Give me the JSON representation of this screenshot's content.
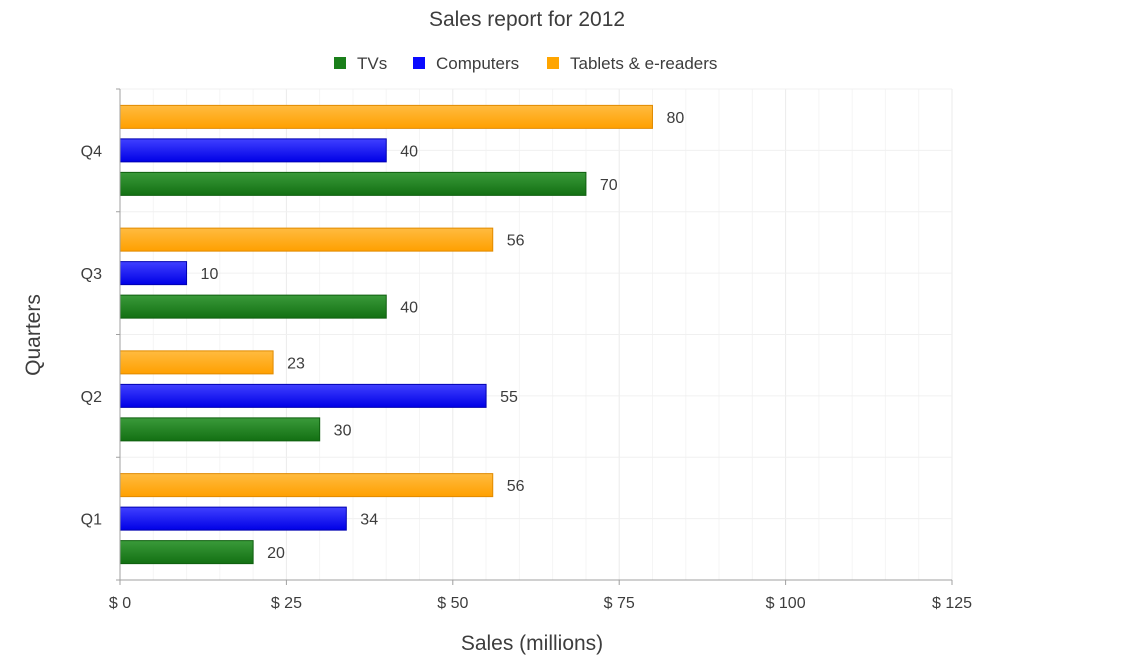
{
  "chart_data": {
    "type": "bar",
    "orientation": "horizontal",
    "title": "Sales report for 2012",
    "xlabel": "Sales (millions)",
    "ylabel": "Quarters",
    "categories": [
      "Q1",
      "Q2",
      "Q3",
      "Q4"
    ],
    "xlim": [
      0,
      125
    ],
    "x_ticks": [
      0,
      25,
      50,
      75,
      100,
      125
    ],
    "x_tick_labels": [
      "$ 0",
      "$ 25",
      "$ 50",
      "$ 75",
      "$ 100",
      "$ 125"
    ],
    "grid": true,
    "legend_position": "top-center",
    "series": [
      {
        "name": "TVs",
        "color": "#1a7f1a",
        "values": [
          20,
          30,
          40,
          70
        ]
      },
      {
        "name": "Computers",
        "color": "#0a0aff",
        "values": [
          34,
          55,
          10,
          40
        ]
      },
      {
        "name": "Tablets & e-readers",
        "color": "#ffa500",
        "values": [
          56,
          23,
          56,
          80
        ]
      }
    ]
  }
}
